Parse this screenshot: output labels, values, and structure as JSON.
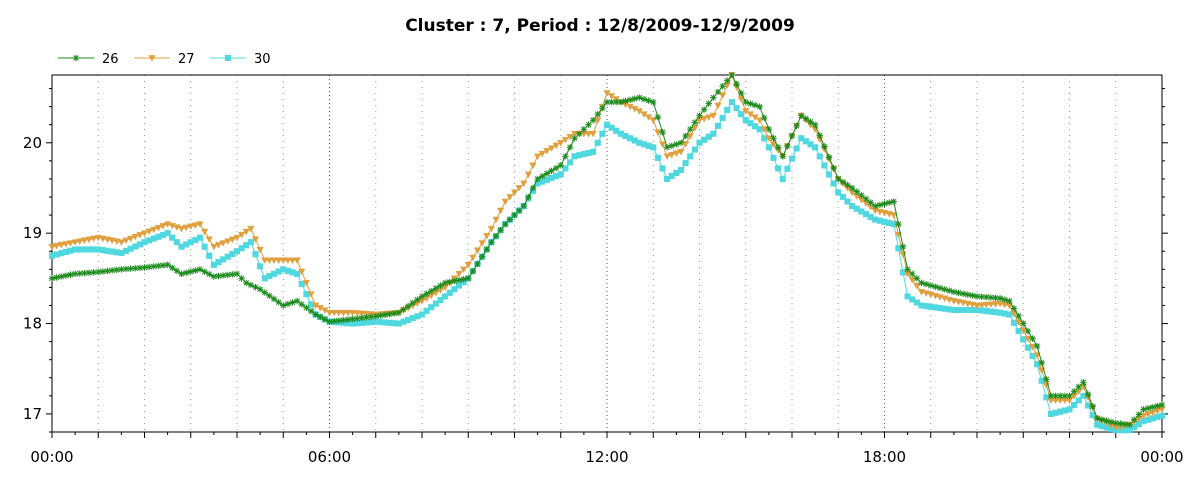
{
  "chart_data": {
    "type": "line",
    "title": "Cluster : 7, Period : 12/8/2009-12/9/2009",
    "xlabel": "",
    "ylabel": "",
    "x_unit": "hours",
    "xlim": [
      0,
      24
    ],
    "ylim": [
      16.8,
      20.75
    ],
    "x_ticks": [
      {
        "value": 0,
        "label": "00:00"
      },
      {
        "value": 6,
        "label": "06:00"
      },
      {
        "value": 12,
        "label": "12:00"
      },
      {
        "value": 18,
        "label": "18:00"
      },
      {
        "value": 24,
        "label": "00:00"
      }
    ],
    "y_ticks": [
      {
        "value": 17,
        "label": "17"
      },
      {
        "value": 18,
        "label": "18"
      },
      {
        "value": 19,
        "label": "19"
      },
      {
        "value": 20,
        "label": "20"
      }
    ],
    "grid": "vertical dotted",
    "legend_position": "top-left",
    "series": [
      {
        "name": "26",
        "color": "#1a8a1a",
        "marker": "asterisk",
        "x": [
          0,
          0.5,
          1,
          1.5,
          2,
          2.5,
          2.8,
          3.2,
          3.5,
          4,
          4.2,
          4.5,
          5,
          5.3,
          5.7,
          6,
          6.5,
          7,
          7.5,
          8,
          8.5,
          9,
          9.5,
          9.8,
          10.2,
          10.5,
          11,
          11.3,
          11.7,
          12,
          12.3,
          12.7,
          13,
          13.3,
          13.6,
          14,
          14.3,
          14.7,
          15,
          15.3,
          15.5,
          15.8,
          16.2,
          16.5,
          17,
          17.3,
          17.8,
          18.2,
          18.5,
          18.8,
          19.5,
          20,
          20.5,
          20.7,
          21.3,
          21.6,
          22,
          22.3,
          22.6,
          23,
          23.3,
          23.6,
          24
        ],
        "y": [
          18.5,
          18.55,
          18.57,
          18.6,
          18.62,
          18.65,
          18.55,
          18.6,
          18.52,
          18.55,
          18.45,
          18.38,
          18.2,
          18.25,
          18.1,
          18.02,
          18.05,
          18.08,
          18.12,
          18.3,
          18.45,
          18.5,
          18.9,
          19.1,
          19.3,
          19.6,
          19.75,
          20.05,
          20.25,
          20.45,
          20.45,
          20.5,
          20.45,
          19.95,
          20.0,
          20.3,
          20.5,
          20.75,
          20.45,
          20.4,
          20.15,
          19.85,
          20.3,
          20.2,
          19.6,
          19.5,
          19.3,
          19.35,
          18.6,
          18.45,
          18.35,
          18.3,
          18.28,
          18.25,
          17.75,
          17.2,
          17.2,
          17.35,
          16.95,
          16.9,
          16.88,
          17.05,
          17.1
        ]
      },
      {
        "name": "27",
        "color": "#e0a040",
        "marker": "triangle-down",
        "x": [
          0,
          0.5,
          1,
          1.5,
          2,
          2.5,
          2.8,
          3.2,
          3.5,
          4,
          4.3,
          4.6,
          5,
          5.3,
          5.7,
          6,
          6.5,
          7,
          7.5,
          8,
          8.5,
          9,
          9.5,
          9.8,
          10.2,
          10.5,
          11,
          11.3,
          11.7,
          12,
          12.3,
          12.7,
          13,
          13.3,
          13.6,
          14,
          14.3,
          14.7,
          15,
          15.3,
          15.5,
          15.8,
          16.2,
          16.5,
          17,
          17.3,
          17.8,
          18.2,
          18.5,
          18.8,
          19.5,
          20,
          20.5,
          20.7,
          21.3,
          21.6,
          22,
          22.3,
          22.6,
          23,
          23.3,
          23.6,
          24
        ],
        "y": [
          18.85,
          18.9,
          18.95,
          18.9,
          19.0,
          19.1,
          19.05,
          19.1,
          18.85,
          18.95,
          19.05,
          18.7,
          18.7,
          18.7,
          18.2,
          18.12,
          18.12,
          18.1,
          18.12,
          18.25,
          18.4,
          18.65,
          19.05,
          19.35,
          19.55,
          19.85,
          20.0,
          20.1,
          20.1,
          20.55,
          20.45,
          20.35,
          20.25,
          19.85,
          19.9,
          20.25,
          20.3,
          20.75,
          20.35,
          20.25,
          20.05,
          19.85,
          20.3,
          20.15,
          19.6,
          19.45,
          19.25,
          19.2,
          18.55,
          18.35,
          18.25,
          18.2,
          18.22,
          18.2,
          17.65,
          17.15,
          17.15,
          17.3,
          16.95,
          16.85,
          16.88,
          16.98,
          17.05
        ]
      },
      {
        "name": "30",
        "color": "#50d8e0",
        "marker": "square",
        "x": [
          0,
          0.5,
          1,
          1.5,
          2,
          2.5,
          2.8,
          3.2,
          3.5,
          4,
          4.3,
          4.6,
          5,
          5.3,
          5.7,
          6,
          6.5,
          7,
          7.5,
          8,
          8.5,
          9,
          9.5,
          9.8,
          10.2,
          10.5,
          11,
          11.3,
          11.7,
          12,
          12.3,
          12.7,
          13,
          13.3,
          13.6,
          14,
          14.3,
          14.7,
          15,
          15.3,
          15.5,
          15.8,
          16.2,
          16.5,
          17,
          17.3,
          17.8,
          18.2,
          18.5,
          18.8,
          19.5,
          20,
          20.5,
          20.7,
          21.3,
          21.6,
          22,
          22.3,
          22.6,
          23,
          23.3,
          23.6,
          24
        ],
        "y": [
          18.75,
          18.82,
          18.82,
          18.78,
          18.9,
          19.0,
          18.85,
          18.95,
          18.65,
          18.8,
          18.9,
          18.5,
          18.6,
          18.55,
          18.1,
          18.02,
          18.0,
          18.02,
          18.0,
          18.1,
          18.3,
          18.5,
          18.9,
          19.1,
          19.3,
          19.55,
          19.65,
          19.85,
          19.9,
          20.2,
          20.1,
          20.0,
          19.95,
          19.6,
          19.7,
          20.0,
          20.1,
          20.45,
          20.25,
          20.15,
          19.95,
          19.6,
          20.05,
          19.95,
          19.45,
          19.3,
          19.15,
          19.1,
          18.3,
          18.2,
          18.15,
          18.15,
          18.12,
          18.1,
          17.55,
          17.0,
          17.05,
          17.2,
          16.88,
          16.82,
          16.82,
          16.92,
          16.98
        ]
      }
    ]
  }
}
